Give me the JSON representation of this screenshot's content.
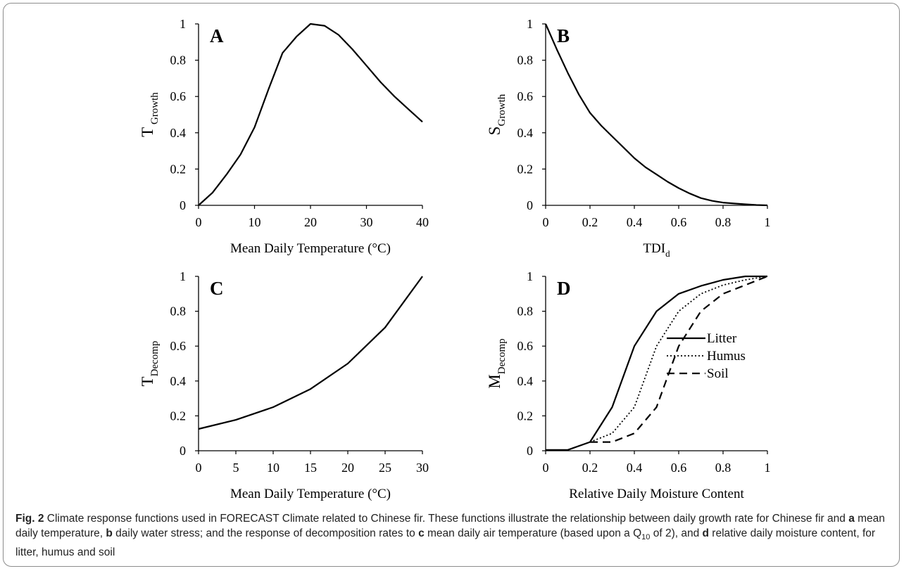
{
  "chart_data": [
    {
      "type": "line",
      "panel_letter": "A",
      "xlabel": "Mean Daily Temperature (°C)",
      "ylabel_main": "T",
      "ylabel_sub": "Growth",
      "xlim": [
        0,
        40
      ],
      "ylim": [
        0,
        1
      ],
      "xticks": [
        0,
        10,
        20,
        30,
        40
      ],
      "xtick_labels": [
        "0",
        "10",
        "20",
        "30",
        "40"
      ],
      "yticks": [
        0,
        0.2,
        0.4,
        0.6,
        0.8,
        1
      ],
      "ytick_labels": [
        "0",
        "0.2",
        "0.4",
        "0.6",
        "0.8",
        "1"
      ],
      "series": [
        {
          "style": "solid",
          "x": [
            0,
            2.5,
            5,
            7.5,
            10,
            12.5,
            15,
            17.5,
            20,
            22.5,
            25,
            27.5,
            30,
            32.5,
            35,
            37.5,
            40
          ],
          "y": [
            0,
            0.07,
            0.17,
            0.28,
            0.43,
            0.64,
            0.84,
            0.93,
            1.0,
            0.99,
            0.94,
            0.86,
            0.77,
            0.68,
            0.6,
            0.53,
            0.46
          ]
        }
      ]
    },
    {
      "type": "line",
      "panel_letter": "B",
      "xlabel": "TDI",
      "xlabel_sub": "d",
      "ylabel_main": "S",
      "ylabel_sub": "Growth",
      "xlim": [
        0,
        1
      ],
      "ylim": [
        0,
        1
      ],
      "xticks": [
        0,
        0.2,
        0.4,
        0.6,
        0.8,
        1
      ],
      "xtick_labels": [
        "0",
        "0.2",
        "0.4",
        "0.6",
        "0.8",
        "1"
      ],
      "yticks": [
        0,
        0.2,
        0.4,
        0.6,
        0.8,
        1
      ],
      "ytick_labels": [
        "0",
        "0.2",
        "0.4",
        "0.6",
        "0.8",
        "1"
      ],
      "series": [
        {
          "style": "solid",
          "x": [
            0,
            0.05,
            0.1,
            0.15,
            0.2,
            0.25,
            0.3,
            0.35,
            0.4,
            0.45,
            0.5,
            0.55,
            0.6,
            0.65,
            0.7,
            0.75,
            0.8,
            0.85,
            0.9,
            0.95,
            1.0
          ],
          "y": [
            1.0,
            0.86,
            0.73,
            0.61,
            0.51,
            0.44,
            0.38,
            0.32,
            0.26,
            0.21,
            0.17,
            0.13,
            0.095,
            0.065,
            0.04,
            0.025,
            0.015,
            0.01,
            0.006,
            0.002,
            0
          ]
        }
      ]
    },
    {
      "type": "line",
      "panel_letter": "C",
      "xlabel": "Mean Daily Temperature (°C)",
      "ylabel_main": "T",
      "ylabel_sub": "Decomp",
      "xlim": [
        0,
        30
      ],
      "ylim": [
        0,
        1
      ],
      "xticks": [
        0,
        5,
        10,
        15,
        20,
        25,
        30
      ],
      "xtick_labels": [
        "0",
        "5",
        "10",
        "15",
        "20",
        "25",
        "30"
      ],
      "yticks": [
        0,
        0.2,
        0.4,
        0.6,
        0.8,
        1
      ],
      "ytick_labels": [
        "0",
        "0.2",
        "0.4",
        "0.6",
        "0.8",
        "1"
      ],
      "series": [
        {
          "style": "solid",
          "x": [
            0,
            5,
            10,
            15,
            20,
            25,
            30
          ],
          "y": [
            0.125,
            0.177,
            0.25,
            0.354,
            0.5,
            0.707,
            1.0
          ]
        }
      ]
    },
    {
      "type": "line",
      "panel_letter": "D",
      "xlabel": "Relative Daily Moisture Content",
      "ylabel_main": "M",
      "ylabel_sub": "Decomp",
      "xlim": [
        0,
        1
      ],
      "ylim": [
        0,
        1
      ],
      "xticks": [
        0,
        0.2,
        0.4,
        0.6,
        0.8,
        1
      ],
      "xtick_labels": [
        "0",
        "0.2",
        "0.4",
        "0.6",
        "0.8",
        "1"
      ],
      "yticks": [
        0,
        0.2,
        0.4,
        0.6,
        0.8,
        1
      ],
      "ytick_labels": [
        "0",
        "0.2",
        "0.4",
        "0.6",
        "0.8",
        "1"
      ],
      "legend": "right",
      "series": [
        {
          "name": "Litter",
          "style": "solid",
          "x": [
            0,
            0.1,
            0.2,
            0.3,
            0.4,
            0.5,
            0.6,
            0.7,
            0.8,
            0.9,
            1.0
          ],
          "y": [
            0.005,
            0.005,
            0.05,
            0.25,
            0.6,
            0.8,
            0.9,
            0.945,
            0.98,
            1.0,
            1.0
          ]
        },
        {
          "name": "Humus",
          "style": "dotted",
          "x": [
            0.2,
            0.3,
            0.4,
            0.5,
            0.6,
            0.7,
            0.8,
            0.9,
            1.0
          ],
          "y": [
            0.05,
            0.1,
            0.25,
            0.6,
            0.8,
            0.9,
            0.95,
            0.98,
            1.0
          ]
        },
        {
          "name": "Soil",
          "style": "dashed",
          "x": [
            0.2,
            0.3,
            0.4,
            0.5,
            0.6,
            0.7,
            0.8,
            0.9,
            1.0
          ],
          "y": [
            0.05,
            0.05,
            0.1,
            0.25,
            0.6,
            0.8,
            0.9,
            0.95,
            1.0
          ]
        }
      ]
    }
  ],
  "caption": {
    "label": "Fig. 2",
    "segments": [
      {
        "bold": false,
        "text": " Climate response functions used in FORECAST Climate related to Chinese fir. These functions illustrate the relationship between daily growth rate for Chinese fir and "
      },
      {
        "bold": true,
        "text": "a"
      },
      {
        "bold": false,
        "text": " mean daily temperature, "
      },
      {
        "bold": true,
        "text": "b"
      },
      {
        "bold": false,
        "text": " daily water stress; and the response of decomposition rates to "
      },
      {
        "bold": true,
        "text": "c"
      },
      {
        "bold": false,
        "text": " mean daily air temperature (based upon a Q"
      },
      {
        "bold": false,
        "sub": true,
        "text": "10"
      },
      {
        "bold": false,
        "text": " of 2), and "
      },
      {
        "bold": true,
        "text": "d"
      },
      {
        "bold": false,
        "text": " relative daily moisture content, for litter, humus and soil"
      }
    ]
  }
}
